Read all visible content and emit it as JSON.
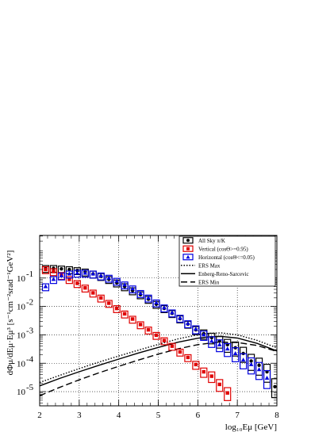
{
  "chart_data": {
    "type": "scatter",
    "xlabel": "log₁₀Eμ [GeV]",
    "ylabel": "dΦμ/dEμ·Eμ³ [s⁻¹cm⁻²srad⁻¹GeV²]",
    "xlim": [
      2,
      8
    ],
    "ylim_log10": [
      -5.5,
      0.5
    ],
    "yscale": "log",
    "grid": true,
    "x_ticks": [
      "2",
      "3",
      "4",
      "5",
      "6",
      "7",
      "8"
    ],
    "y_ticks": [
      {
        "exp": -5,
        "label": "10",
        "sup": "-5"
      },
      {
        "exp": -4,
        "label": "10",
        "sup": "-4"
      },
      {
        "exp": -3,
        "label": "10",
        "sup": "-3"
      },
      {
        "exp": -2,
        "label": "10",
        "sup": "-2"
      },
      {
        "exp": -1,
        "label": "10",
        "sup": "-1"
      }
    ],
    "legend_position": "top-right",
    "legend": [
      {
        "label": "All Sky π/K",
        "style": "black-circle-box"
      },
      {
        "label": "Vertical (cosΘ>=0.95)",
        "style": "red-square-box"
      },
      {
        "label": "Horizontal (cosΘ<=0.05)",
        "style": "blue-triangle-box"
      },
      {
        "label": "ERS Max",
        "style": "dotted"
      },
      {
        "label": "Enberg-Reno-Sarcevic",
        "style": "solid"
      },
      {
        "label": "ERS Min",
        "style": "dashed"
      }
    ],
    "series": [
      {
        "name": "All Sky π/K",
        "color": "#000000",
        "marker": "circle",
        "x": [
          2.15,
          2.35,
          2.55,
          2.75,
          2.95,
          3.15,
          3.35,
          3.55,
          3.75,
          3.95,
          4.15,
          4.35,
          4.55,
          4.75,
          4.95,
          5.15,
          5.35,
          5.55,
          5.75,
          5.95,
          6.15,
          6.35,
          6.55,
          6.75,
          6.95,
          7.15,
          7.35,
          7.55,
          7.75,
          7.95
        ],
        "y": [
          0.22,
          0.22,
          0.21,
          0.2,
          0.185,
          0.165,
          0.14,
          0.115,
          0.09,
          0.068,
          0.05,
          0.036,
          0.026,
          0.018,
          0.012,
          0.0085,
          0.0057,
          0.0037,
          0.0024,
          0.0015,
          0.0011,
          0.0008,
          0.0006,
          0.00045,
          0.00035,
          0.00022,
          0.00012,
          8.5e-05,
          5e-05,
          1.5e-05
        ]
      },
      {
        "name": "Vertical (cosΘ>=0.95)",
        "color": "#e00000",
        "marker": "square",
        "x": [
          2.15,
          2.35,
          2.55,
          2.75,
          2.95,
          3.15,
          3.35,
          3.55,
          3.75,
          3.95,
          4.15,
          4.35,
          4.55,
          4.75,
          4.95,
          5.15,
          5.35,
          5.55,
          5.75,
          5.95,
          6.15,
          6.35,
          6.55,
          6.75
        ],
        "y": [
          0.2,
          0.17,
          0.125,
          0.09,
          0.065,
          0.045,
          0.03,
          0.02,
          0.013,
          0.0085,
          0.0055,
          0.0036,
          0.0023,
          0.0015,
          0.00097,
          0.00063,
          0.0004,
          0.00025,
          0.00016,
          9e-05,
          5e-05,
          3.5e-05,
          1.8e-05,
          9e-06
        ]
      },
      {
        "name": "Horizontal (cosΘ<=0.05)",
        "color": "#0000e0",
        "marker": "triangle",
        "x": [
          2.15,
          2.35,
          2.55,
          2.75,
          2.95,
          3.15,
          3.35,
          3.55,
          3.75,
          3.95,
          4.15,
          4.35,
          4.55,
          4.75,
          4.95,
          5.15,
          5.35,
          5.55,
          5.75,
          5.95,
          6.15,
          6.35,
          6.55,
          6.75,
          6.95,
          7.15,
          7.35,
          7.55,
          7.75
        ],
        "y": [
          0.05,
          0.09,
          0.12,
          0.14,
          0.15,
          0.15,
          0.14,
          0.12,
          0.1,
          0.078,
          0.058,
          0.042,
          0.029,
          0.02,
          0.0135,
          0.009,
          0.006,
          0.0039,
          0.0025,
          0.0016,
          0.001,
          0.0006,
          0.00045,
          0.00032,
          0.00022,
          0.00013,
          9e-05,
          6e-05,
          3e-05
        ]
      }
    ],
    "curves": [
      {
        "name": "ERS Max",
        "style": "dotted",
        "x": [
          2.0,
          2.5,
          3.0,
          3.5,
          4.0,
          4.5,
          5.0,
          5.5,
          6.0,
          6.3,
          6.6,
          7.0,
          7.5,
          8.0
        ],
        "y": [
          2.1e-05,
          3.7e-05,
          6.5e-05,
          0.00011,
          0.00018,
          0.00029,
          0.00046,
          0.00072,
          0.001,
          0.00113,
          0.00117,
          0.001,
          0.00064,
          0.00035
        ]
      },
      {
        "name": "Enberg-Reno-Sarcevic",
        "style": "solid",
        "x": [
          2.0,
          2.5,
          3.0,
          3.5,
          4.0,
          4.5,
          5.0,
          5.5,
          6.0,
          6.3,
          6.6,
          7.0,
          7.5,
          8.0
        ],
        "y": [
          1.6e-05,
          2.9e-05,
          5e-05,
          8.5e-05,
          0.00014,
          0.00023,
          0.00036,
          0.00055,
          0.00076,
          0.00085,
          0.00088,
          0.00077,
          0.0005,
          0.00027
        ]
      },
      {
        "name": "ERS Min",
        "style": "dashed",
        "x": [
          2.0,
          2.5,
          3.0,
          3.5,
          4.0,
          4.5,
          5.0,
          5.5,
          6.0,
          6.5,
          7.0,
          7.5,
          8.0
        ],
        "y": [
          7.2e-06,
          1.4e-05,
          2.6e-05,
          4.6e-05,
          7.8e-05,
          0.00013,
          0.00021,
          0.00032,
          0.00045,
          0.00055,
          0.00054,
          0.00042,
          0.00026
        ]
      }
    ]
  }
}
